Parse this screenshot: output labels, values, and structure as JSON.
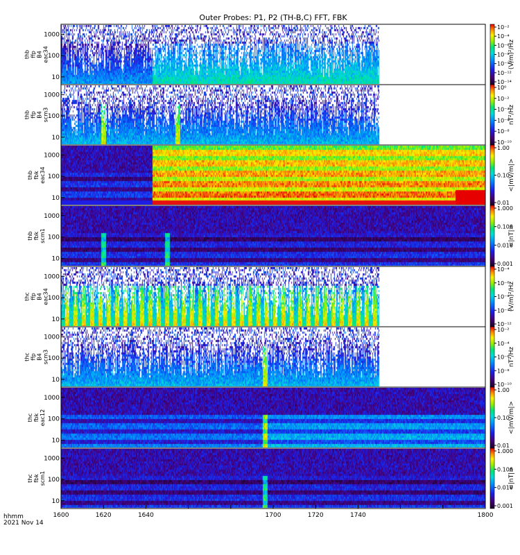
{
  "chart_data": {
    "type": "heatmap",
    "title": "Outer Probes: P1, P2 (TH-B,C) FFT, FBK",
    "footer": {
      "line1": "hhmm",
      "line2": "2021 Nov 14"
    },
    "x_axis": {
      "range": [
        1600,
        1800
      ],
      "ticks": [
        "1600",
        "1620",
        "1640",
        "1660",
        "1680",
        "1700",
        "1720",
        "1740",
        "1760",
        "1780",
        "1800"
      ],
      "tick_labels": [
        "1600",
        "1620",
        "1640",
        "1700",
        "1720",
        "1740",
        "1800"
      ]
    },
    "panels": [
      {
        "id": "thb-ffp-eac34",
        "ylabel": [
          "thb",
          "ffp",
          "B4",
          "eac34"
        ],
        "yticks": [
          "10",
          "100",
          "1000"
        ],
        "scale": "log",
        "cb_label": "(V/m)²/Hz",
        "cb_ticks": [
          "10⁻¹⁴",
          "10⁻¹²",
          "10⁻¹⁰",
          "10⁻⁸",
          "10⁻⁶",
          "10⁻⁴",
          "10⁻²"
        ],
        "data_end": 1750,
        "base": 0.18,
        "top_fill": 0.55,
        "white_gaps": true,
        "change_at": 1643,
        "after": 0.32,
        "base2": 0.55
      },
      {
        "id": "thb-ffp-scm3",
        "ylabel": [
          "thb",
          "ffp",
          "B4",
          "scm3"
        ],
        "yticks": [
          "10",
          "100",
          "1000"
        ],
        "scale": "log",
        "cb_label": "nT²/Hz",
        "cb_ticks": [
          "10⁻¹⁰",
          "10⁻⁸",
          "10⁻⁶",
          "10⁻⁴",
          "10⁻²",
          "10⁰"
        ],
        "data_end": 1750,
        "base": 0.22,
        "top_fill": 0.15,
        "white_gaps": true,
        "spikes": [
          1620,
          1655
        ]
      },
      {
        "id": "thb-fbk-eac34",
        "ylabel": [
          "thb",
          "fbk",
          "eac34"
        ],
        "yticks": [
          "10",
          "100",
          "1000"
        ],
        "scale": "log",
        "cb_label": "<|mV/m|>",
        "cb_ticks": [
          "0.01",
          "0.10",
          "1.00"
        ],
        "data_end": 1800,
        "base": 0.15,
        "change_at": 1643,
        "after": 0.78,
        "red_after": 1786
      },
      {
        "id": "thb-fbk-scm1",
        "ylabel": [
          "thb",
          "fbk",
          "scm1"
        ],
        "yticks": [
          "10",
          "100",
          "1000"
        ],
        "scale": "log",
        "cb_label": "<|nT|>",
        "cb_ticks": [
          "0.001",
          "0.010",
          "0.100",
          "1.000"
        ],
        "data_end": 1800,
        "base": 0.12,
        "spikes": [
          1620,
          1650
        ]
      },
      {
        "id": "thc-ffp-eac34",
        "ylabel": [
          "thc",
          "ffp",
          "B4",
          "eac34"
        ],
        "yticks": [
          "10",
          "100",
          "1000"
        ],
        "scale": "log",
        "cb_label": "(V/m)²/Hz",
        "cb_ticks": [
          "10⁻¹²",
          "10⁻¹⁰",
          "10⁻⁸",
          "10⁻⁶",
          "10⁻⁴"
        ],
        "data_end": 1750,
        "base": 0.35,
        "top_fill": 0.55,
        "white_gaps": true,
        "stripes": true
      },
      {
        "id": "thc-ffp-scm3",
        "ylabel": [
          "thc",
          "ffp",
          "B4",
          "scm3"
        ],
        "yticks": [
          "10",
          "100",
          "1000"
        ],
        "scale": "log",
        "cb_label": "nT²/Hz",
        "cb_ticks": [
          "10⁻¹⁰",
          "10⁻⁸",
          "10⁻⁶",
          "10⁻⁴",
          "10⁻²"
        ],
        "data_end": 1750,
        "base": 0.22,
        "top_fill": 0.15,
        "white_gaps": true,
        "spikes": [
          1696
        ]
      },
      {
        "id": "thc-fbk-eac12",
        "ylabel": [
          "thc",
          "fbk",
          "eac12"
        ],
        "yticks": [
          "10",
          "100",
          "1000"
        ],
        "scale": "log",
        "cb_label": "<|mV/m|>",
        "cb_ticks": [
          "0.01",
          "0.10",
          "1.00"
        ],
        "data_end": 1800,
        "base": 0.22,
        "change_at": 1696,
        "after": 0.3,
        "spikes": [
          1696
        ]
      },
      {
        "id": "thc-fbk-scm1",
        "ylabel": [
          "thc",
          "fbk",
          "scm1"
        ],
        "yticks": [
          "10",
          "100",
          "1000"
        ],
        "scale": "log",
        "cb_label": "<|nT|>",
        "cb_ticks": [
          "0.001",
          "0.010",
          "0.100",
          "1.000"
        ],
        "data_end": 1800,
        "base": 0.12,
        "spikes": [
          1696
        ]
      }
    ]
  }
}
